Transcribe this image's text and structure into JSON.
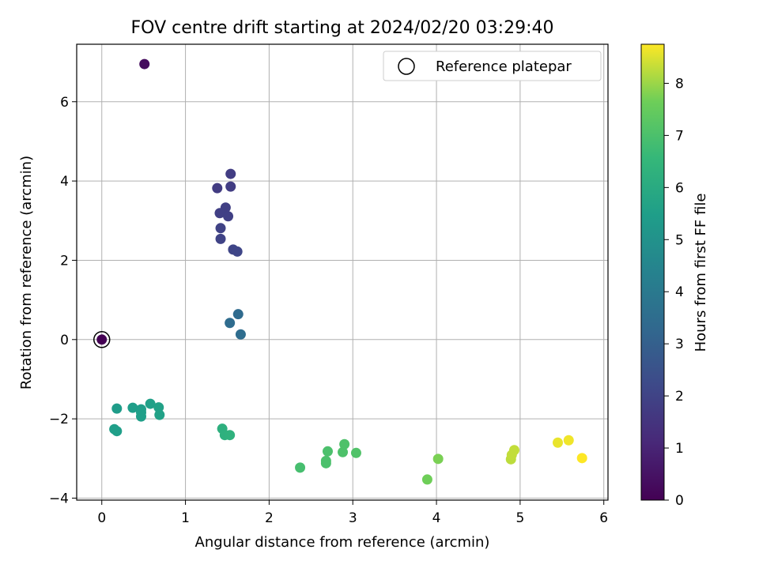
{
  "chart_data": {
    "type": "scatter",
    "title": "FOV centre drift starting at 2024/02/20 03:29:40",
    "xlabel": "Angular distance from reference (arcmin)",
    "ylabel": "Rotation from reference (arcmin)",
    "xlim": [
      -0.3,
      6.05
    ],
    "ylim": [
      -4.05,
      7.45
    ],
    "xticks": [
      0,
      1,
      2,
      3,
      4,
      5,
      6
    ],
    "yticks": [
      -4,
      -2,
      0,
      2,
      4,
      6
    ],
    "grid": true,
    "legend": {
      "position": "top-right",
      "entries": [
        "Reference platepar"
      ]
    },
    "colorbar": {
      "label": "Hours from first FF file",
      "colormap": "viridis",
      "range": [
        0,
        8.75
      ],
      "ticks": [
        0,
        1,
        2,
        3,
        4,
        5,
        6,
        7,
        8
      ]
    },
    "reference_point": {
      "x": 0,
      "y": 0
    },
    "points": [
      {
        "x": 0.0,
        "y": 0.0,
        "hours": 0.0
      },
      {
        "x": 0.51,
        "y": 6.95,
        "hours": 0.3
      },
      {
        "x": 1.54,
        "y": 4.18,
        "hours": 1.8
      },
      {
        "x": 1.38,
        "y": 3.82,
        "hours": 1.75
      },
      {
        "x": 1.54,
        "y": 3.86,
        "hours": 1.8
      },
      {
        "x": 1.48,
        "y": 3.33,
        "hours": 1.85
      },
      {
        "x": 1.41,
        "y": 3.19,
        "hours": 1.9
      },
      {
        "x": 1.51,
        "y": 3.11,
        "hours": 1.9
      },
      {
        "x": 1.42,
        "y": 2.81,
        "hours": 1.95
      },
      {
        "x": 1.42,
        "y": 2.54,
        "hours": 2.0
      },
      {
        "x": 1.57,
        "y": 2.27,
        "hours": 2.05
      },
      {
        "x": 1.62,
        "y": 2.22,
        "hours": 2.1
      },
      {
        "x": 1.63,
        "y": 0.64,
        "hours": 3.4
      },
      {
        "x": 1.53,
        "y": 0.42,
        "hours": 3.45
      },
      {
        "x": 1.66,
        "y": 0.13,
        "hours": 3.5
      },
      {
        "x": 0.18,
        "y": -1.74,
        "hours": 5.4
      },
      {
        "x": 0.37,
        "y": -1.72,
        "hours": 5.45
      },
      {
        "x": 0.47,
        "y": -1.76,
        "hours": 5.45
      },
      {
        "x": 0.47,
        "y": -1.84,
        "hours": 5.5
      },
      {
        "x": 0.47,
        "y": -1.94,
        "hours": 5.5
      },
      {
        "x": 0.58,
        "y": -1.62,
        "hours": 5.55
      },
      {
        "x": 0.68,
        "y": -1.71,
        "hours": 5.6
      },
      {
        "x": 0.69,
        "y": -1.9,
        "hours": 5.6
      },
      {
        "x": 0.15,
        "y": -2.26,
        "hours": 5.5
      },
      {
        "x": 0.18,
        "y": -2.31,
        "hours": 5.5
      },
      {
        "x": 1.44,
        "y": -2.25,
        "hours": 6.2
      },
      {
        "x": 1.47,
        "y": -2.41,
        "hours": 6.25
      },
      {
        "x": 1.53,
        "y": -2.41,
        "hours": 6.3
      },
      {
        "x": 2.37,
        "y": -3.23,
        "hours": 6.9
      },
      {
        "x": 2.68,
        "y": -3.06,
        "hours": 7.0
      },
      {
        "x": 2.68,
        "y": -3.12,
        "hours": 7.0
      },
      {
        "x": 2.7,
        "y": -2.82,
        "hours": 7.0
      },
      {
        "x": 2.88,
        "y": -2.84,
        "hours": 7.05
      },
      {
        "x": 2.9,
        "y": -2.64,
        "hours": 7.05
      },
      {
        "x": 3.04,
        "y": -2.86,
        "hours": 7.1
      },
      {
        "x": 3.89,
        "y": -3.53,
        "hours": 7.65
      },
      {
        "x": 4.02,
        "y": -3.01,
        "hours": 7.75
      },
      {
        "x": 4.89,
        "y": -3.02,
        "hours": 8.25
      },
      {
        "x": 4.9,
        "y": -2.91,
        "hours": 8.3
      },
      {
        "x": 4.93,
        "y": -2.79,
        "hours": 8.3
      },
      {
        "x": 5.45,
        "y": -2.6,
        "hours": 8.6
      },
      {
        "x": 5.58,
        "y": -2.54,
        "hours": 8.65
      },
      {
        "x": 5.74,
        "y": -2.99,
        "hours": 8.75
      }
    ]
  }
}
